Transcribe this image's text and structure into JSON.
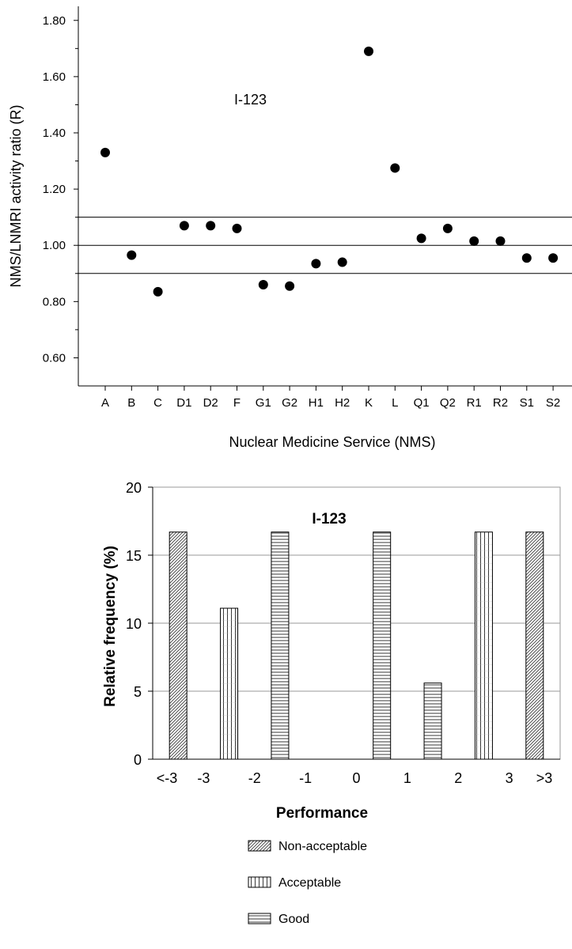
{
  "chart_data": [
    {
      "type": "scatter",
      "title": "",
      "annotation": "I-123",
      "xlabel": "Nuclear Medicine Service (NMS)",
      "ylabel": "NMS/LNMRI activity ratio (R)",
      "ylim": [
        0.5,
        1.85
      ],
      "yticks": [
        "0.60",
        "0.80",
        "1.00",
        "1.20",
        "1.40",
        "1.60",
        "1.80"
      ],
      "yticks_values": [
        0.6,
        0.8,
        1.0,
        1.2,
        1.4,
        1.6,
        1.8
      ],
      "reference_lines": [
        0.9,
        1.0,
        1.1
      ],
      "grid": false,
      "categories": [
        "A",
        "B",
        "C",
        "D1",
        "D2",
        "F",
        "G1",
        "G2",
        "H1",
        "H2",
        "K",
        "L",
        "Q1",
        "Q2",
        "R1",
        "R2",
        "S1",
        "S2"
      ],
      "values": [
        1.33,
        0.965,
        0.835,
        1.07,
        1.07,
        1.06,
        0.86,
        0.855,
        0.935,
        0.94,
        1.69,
        1.275,
        1.025,
        1.06,
        1.015,
        1.015,
        0.955,
        0.955
      ]
    },
    {
      "type": "bar",
      "title": "I-123",
      "xlabel": "Performance",
      "ylabel": "Relative frequency (%)",
      "ylim": [
        0,
        20
      ],
      "yticks": [
        "0",
        "5",
        "10",
        "15",
        "20"
      ],
      "yticks_values": [
        0,
        5,
        10,
        15,
        20
      ],
      "grid": true,
      "xticks": [
        "<-3",
        "-3",
        "-2",
        "-1",
        "0",
        "1",
        "2",
        "3",
        ">3"
      ],
      "categories": [
        "<-3",
        "-3 to -2",
        "-2 to -1",
        "-1 to 0",
        "0 to 1",
        "1 to 2",
        "2 to 3",
        ">3"
      ],
      "values": [
        16.7,
        11.1,
        16.7,
        0,
        16.7,
        5.6,
        16.7,
        16.7
      ],
      "bar_classes": [
        "Non-acceptable",
        "Acceptable",
        "Good",
        "Good",
        "Good",
        "Good",
        "Acceptable",
        "Non-acceptable"
      ],
      "legend": {
        "position": "bottom",
        "items": [
          {
            "label": "Non-acceptable",
            "pattern": "diagonal-hatch"
          },
          {
            "label": "Acceptable",
            "pattern": "vertical-lines"
          },
          {
            "label": "Good",
            "pattern": "horizontal-lines"
          }
        ]
      }
    }
  ]
}
